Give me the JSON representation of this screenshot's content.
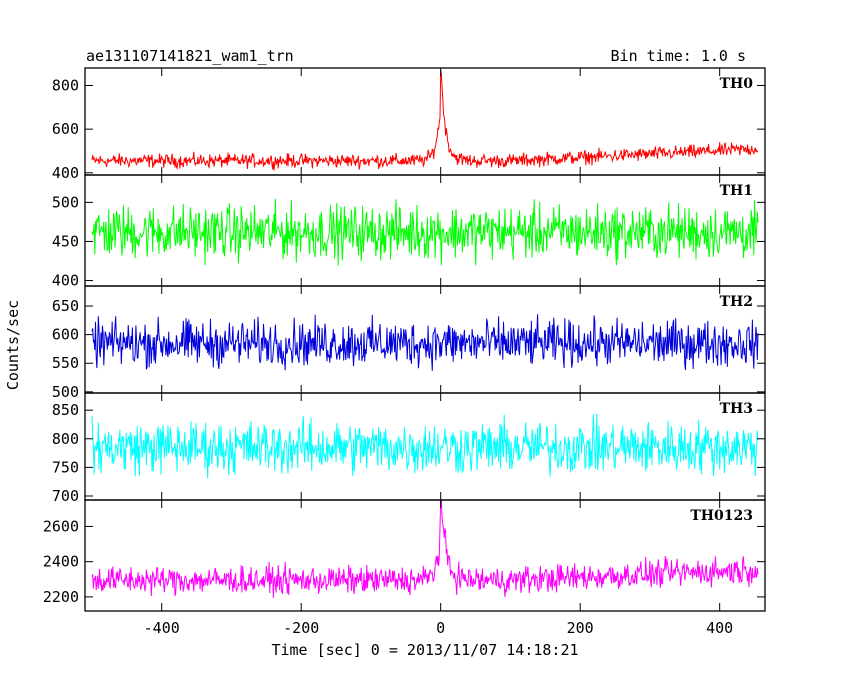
{
  "chart_data": {
    "type": "line",
    "title": "ae131107141821_wam1_trn",
    "bin_time_label": "Bin time: 1.0 s",
    "xlabel": "Time [sec] 0 = 2013/11/07 14:18:21",
    "ylabel": "Counts/sec",
    "xlim": [
      -510,
      465
    ],
    "x_range": [
      -500,
      455
    ],
    "x_ticks": [
      -400,
      -200,
      0,
      200,
      400
    ],
    "grid": false,
    "panels": [
      {
        "label": "TH0",
        "color": "#ff0000",
        "ylim": [
          390,
          880
        ],
        "y_ticks": [
          400,
          600,
          800
        ],
        "baseline": 455,
        "noise": 22,
        "trend": 55,
        "peak": 880,
        "peak_decay": 6
      },
      {
        "label": "TH1",
        "color": "#00ff00",
        "ylim": [
          393,
          535
        ],
        "y_ticks": [
          400,
          450,
          500
        ],
        "baseline": 462,
        "noise": 24,
        "trend": 0,
        "peak": null,
        "peak_decay": 0
      },
      {
        "label": "TH2",
        "color": "#0000dd",
        "ylim": [
          498,
          685
        ],
        "y_ticks": [
          500,
          550,
          600,
          650
        ],
        "baseline": 585,
        "noise": 28,
        "trend": 0,
        "peak": null,
        "peak_decay": 0
      },
      {
        "label": "TH3",
        "color": "#00ffff",
        "ylim": [
          693,
          880
        ],
        "y_ticks": [
          700,
          750,
          800,
          850
        ],
        "baseline": 785,
        "noise": 32,
        "trend": 0,
        "peak": null,
        "peak_decay": 0
      },
      {
        "label": "TH0123",
        "color": "#ff00ff",
        "ylim": [
          2120,
          2750
        ],
        "y_ticks": [
          2200,
          2400,
          2600
        ],
        "baseline": 2295,
        "noise": 55,
        "trend": 60,
        "peak": 2750,
        "peak_decay": 6
      }
    ]
  }
}
